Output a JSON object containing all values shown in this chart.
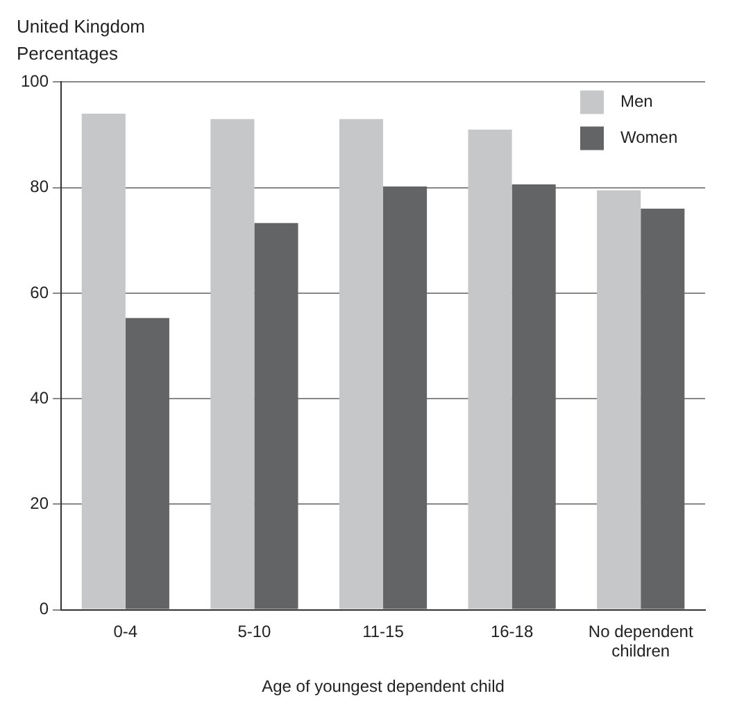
{
  "chart_data": {
    "type": "bar",
    "title": "United Kingdom",
    "subtitle": "Percentages",
    "xlabel": "Age of youngest dependent child",
    "categories": [
      "0-4",
      "5-10",
      "11-15",
      "16-18",
      "No dependent children"
    ],
    "series": [
      {
        "name": "Men",
        "color": "#c6c7c9",
        "values": [
          94,
          93,
          93,
          91,
          79.5
        ]
      },
      {
        "name": "Women",
        "color": "#636466",
        "values": [
          55.3,
          73.3,
          80.2,
          80.6,
          76
        ]
      }
    ],
    "ylim": [
      0,
      100
    ],
    "yticks": [
      0,
      20,
      40,
      60,
      80,
      100
    ],
    "grid": "y",
    "legend": "top right"
  }
}
